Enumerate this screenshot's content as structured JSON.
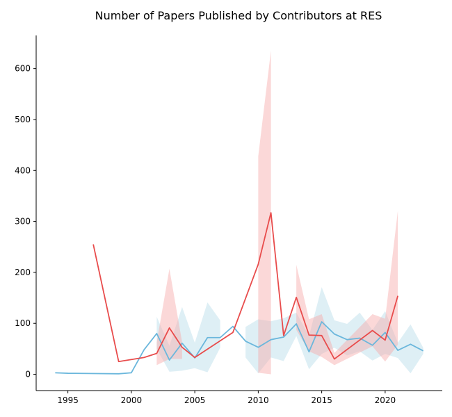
{
  "chart_data": {
    "type": "line",
    "title": "Number of Papers Published by Contributors at RES",
    "xlabel": "",
    "ylabel": "",
    "xlim": [
      1992.5,
      2024.5
    ],
    "ylim": [
      -32,
      665
    ],
    "xticks": [
      1995,
      2000,
      2005,
      2010,
      2015,
      2020
    ],
    "yticks": [
      0,
      100,
      200,
      300,
      400,
      500,
      600
    ],
    "grid": false,
    "legend": "none",
    "series": [
      {
        "color": "#e84c4c",
        "band_color": "#f7a8a8",
        "points": [
          {
            "x": 1997,
            "y": 255
          },
          {
            "x": 1999,
            "y": 25
          },
          {
            "x": 2001,
            "y": 33
          },
          {
            "x": 2002,
            "y": 41,
            "lo": 18,
            "hi": 63
          },
          {
            "x": 2003,
            "y": 91,
            "lo": 30,
            "hi": 207
          },
          {
            "x": 2004,
            "y": 53,
            "lo": 30,
            "hi": 63
          },
          {
            "x": 2005,
            "y": 33
          },
          {
            "x": 2008,
            "y": 82
          },
          {
            "x": 2010,
            "y": 216,
            "lo": 3,
            "hi": 428
          },
          {
            "x": 2011,
            "y": 317,
            "lo": 0,
            "hi": 635
          },
          {
            "x": 2012,
            "y": 76
          },
          {
            "x": 2013,
            "y": 151,
            "lo": 87,
            "hi": 215
          },
          {
            "x": 2014,
            "y": 77,
            "lo": 45,
            "hi": 108
          },
          {
            "x": 2015,
            "y": 76,
            "lo": 34,
            "hi": 118
          },
          {
            "x": 2016,
            "y": 30,
            "lo": 18,
            "hi": 42
          },
          {
            "x": 2019,
            "y": 86,
            "lo": 55,
            "hi": 118
          },
          {
            "x": 2020,
            "y": 67,
            "lo": 25,
            "hi": 109
          },
          {
            "x": 2021,
            "y": 154,
            "lo": 58,
            "hi": 321
          }
        ]
      },
      {
        "color": "#6bb7dc",
        "band_color": "#add8e6",
        "points": [
          {
            "x": 1994,
            "y": 3
          },
          {
            "x": 1995,
            "y": 2
          },
          {
            "x": 1999,
            "y": 1
          },
          {
            "x": 2000,
            "y": 3
          },
          {
            "x": 2001,
            "y": 48
          },
          {
            "x": 2002,
            "y": 80,
            "lo": 50,
            "hi": 113
          },
          {
            "x": 2003,
            "y": 28,
            "lo": 5,
            "hi": 56
          },
          {
            "x": 2004,
            "y": 61,
            "lo": 7,
            "hi": 132
          },
          {
            "x": 2005,
            "y": 32,
            "lo": 12,
            "hi": 62
          },
          {
            "x": 2006,
            "y": 72,
            "lo": 4,
            "hi": 141
          },
          {
            "x": 2007,
            "y": 72,
            "lo": 52,
            "hi": 106
          },
          {
            "x": 2008,
            "y": 94
          },
          {
            "x": 2009,
            "y": 65,
            "lo": 33,
            "hi": 93
          },
          {
            "x": 2010,
            "y": 53,
            "lo": 2,
            "hi": 108
          },
          {
            "x": 2011,
            "y": 68,
            "lo": 33,
            "hi": 104
          },
          {
            "x": 2012,
            "y": 73,
            "lo": 26,
            "hi": 110
          },
          {
            "x": 2013,
            "y": 99,
            "lo": 75,
            "hi": 121
          },
          {
            "x": 2014,
            "y": 44,
            "lo": 10,
            "hi": 75
          },
          {
            "x": 2015,
            "y": 103,
            "lo": 40,
            "hi": 171
          },
          {
            "x": 2016,
            "y": 79,
            "lo": 52,
            "hi": 106
          },
          {
            "x": 2017,
            "y": 68,
            "lo": 37,
            "hi": 99
          },
          {
            "x": 2018,
            "y": 71,
            "lo": 45,
            "hi": 121
          },
          {
            "x": 2019,
            "y": 57,
            "lo": 27,
            "hi": 87
          },
          {
            "x": 2020,
            "y": 82,
            "lo": 40,
            "hi": 124
          },
          {
            "x": 2021,
            "y": 47,
            "lo": 32,
            "hi": 62
          },
          {
            "x": 2022,
            "y": 59,
            "lo": 2,
            "hi": 98
          },
          {
            "x": 2023,
            "y": 46,
            "lo": 40,
            "hi": 52
          }
        ]
      }
    ]
  }
}
